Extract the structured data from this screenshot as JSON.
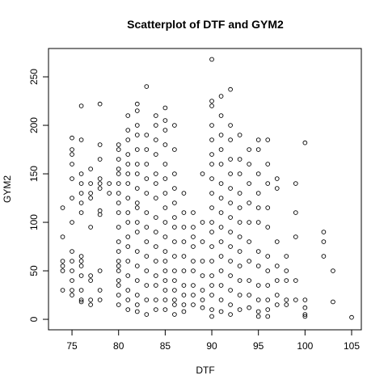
{
  "chart_data": {
    "type": "scatter",
    "title": "Scatterplot of DTF and GYM2",
    "xlabel": "DTF",
    "ylabel": "GYM2",
    "xlim": [
      72.48,
      106.04
    ],
    "ylim": [
      -10.8,
      279.2
    ],
    "xticks": [
      75,
      80,
      85,
      90,
      95,
      100,
      105
    ],
    "yticks": [
      0,
      50,
      100,
      150,
      200,
      250
    ],
    "color": "#000000",
    "x": [
      74,
      74,
      74,
      74,
      74,
      74,
      75,
      75,
      75,
      75,
      75,
      75,
      75,
      75,
      75,
      75,
      75,
      75,
      75,
      76,
      76,
      76,
      76,
      76,
      76,
      76,
      76,
      76,
      76,
      76,
      76,
      76,
      76,
      77,
      77,
      77,
      77,
      77,
      77,
      77,
      77,
      77,
      78,
      78,
      78,
      78,
      78,
      78,
      78,
      78,
      78,
      78,
      78,
      79,
      79,
      80,
      80,
      80,
      80,
      80,
      80,
      80,
      80,
      80,
      80,
      80,
      80,
      80,
      80,
      80,
      80,
      80,
      80,
      80,
      81,
      81,
      81,
      81,
      81,
      81,
      81,
      81,
      81,
      81,
      81,
      81,
      81,
      81,
      81,
      81,
      81,
      82,
      82,
      82,
      82,
      82,
      82,
      82,
      82,
      82,
      82,
      82,
      82,
      82,
      82,
      82,
      82,
      82,
      82,
      83,
      83,
      83,
      83,
      83,
      83,
      83,
      83,
      83,
      83,
      83,
      83,
      83,
      83,
      84,
      84,
      84,
      84,
      84,
      84,
      84,
      84,
      84,
      84,
      84,
      84,
      84,
      84,
      84,
      85,
      85,
      85,
      85,
      85,
      85,
      85,
      85,
      85,
      85,
      85,
      85,
      85,
      85,
      85,
      85,
      85,
      86,
      86,
      86,
      86,
      86,
      86,
      86,
      86,
      86,
      86,
      86,
      86,
      86,
      86,
      86,
      87,
      87,
      87,
      87,
      87,
      87,
      87,
      87,
      87,
      87,
      88,
      88,
      88,
      88,
      88,
      88,
      88,
      88,
      88,
      89,
      89,
      89,
      89,
      89,
      89,
      89,
      89,
      90,
      90,
      90,
      90,
      90,
      90,
      90,
      90,
      90,
      90,
      90,
      90,
      90,
      90,
      90,
      90,
      90,
      90,
      90,
      91,
      91,
      91,
      91,
      91,
      91,
      91,
      91,
      91,
      91,
      91,
      91,
      91,
      91,
      91,
      92,
      92,
      92,
      92,
      92,
      92,
      92,
      92,
      92,
      92,
      92,
      92,
      92,
      92,
      92,
      93,
      93,
      93,
      93,
      93,
      93,
      93,
      93,
      93,
      93,
      93,
      93,
      94,
      94,
      94,
      94,
      94,
      94,
      94,
      94,
      94,
      94,
      95,
      95,
      95,
      95,
      95,
      95,
      95,
      95,
      95,
      95,
      95,
      95,
      96,
      96,
      96,
      96,
      96,
      96,
      96,
      96,
      96,
      96,
      96,
      97,
      97,
      97,
      97,
      97,
      97,
      97,
      98,
      98,
      98,
      98,
      98,
      99,
      99,
      99,
      99,
      99,
      100,
      100,
      100,
      100,
      100,
      102,
      102,
      102,
      103,
      103,
      105
    ],
    "values": [
      115,
      85,
      60,
      55,
      50,
      30,
      187,
      175,
      170,
      160,
      145,
      125,
      100,
      70,
      60,
      50,
      40,
      30,
      25,
      220,
      185,
      150,
      140,
      130,
      120,
      110,
      65,
      60,
      55,
      45,
      30,
      20,
      18,
      155,
      140,
      130,
      125,
      95,
      45,
      40,
      20,
      15,
      222,
      180,
      165,
      145,
      140,
      135,
      112,
      108,
      50,
      30,
      20,
      140,
      130,
      180,
      175,
      165,
      155,
      150,
      140,
      130,
      120,
      110,
      95,
      80,
      70,
      60,
      55,
      50,
      40,
      35,
      25,
      15,
      210,
      195,
      185,
      170,
      160,
      150,
      140,
      125,
      110,
      100,
      85,
      75,
      60,
      45,
      30,
      20,
      10,
      222,
      215,
      200,
      190,
      175,
      160,
      150,
      135,
      120,
      115,
      100,
      90,
      70,
      55,
      40,
      25,
      15,
      8,
      240,
      190,
      175,
      160,
      145,
      130,
      110,
      95,
      80,
      65,
      50,
      35,
      20,
      5,
      210,
      200,
      185,
      170,
      150,
      140,
      125,
      105,
      90,
      75,
      60,
      45,
      35,
      20,
      10,
      218,
      205,
      195,
      180,
      160,
      145,
      130,
      115,
      100,
      85,
      70,
      60,
      50,
      40,
      30,
      20,
      10,
      200,
      175,
      150,
      135,
      120,
      105,
      95,
      80,
      65,
      50,
      40,
      30,
      20,
      15,
      5,
      130,
      110,
      95,
      80,
      65,
      50,
      35,
      25,
      15,
      8,
      110,
      95,
      85,
      75,
      60,
      50,
      35,
      25,
      15,
      150,
      100,
      80,
      60,
      45,
      30,
      20,
      12,
      268,
      225,
      220,
      200,
      185,
      170,
      160,
      145,
      130,
      115,
      100,
      90,
      75,
      60,
      45,
      35,
      25,
      10,
      3,
      230,
      210,
      190,
      175,
      160,
      140,
      125,
      110,
      95,
      80,
      65,
      50,
      35,
      20,
      8,
      237,
      200,
      185,
      165,
      150,
      135,
      120,
      105,
      90,
      75,
      60,
      45,
      30,
      15,
      5,
      190,
      165,
      150,
      130,
      115,
      100,
      85,
      70,
      55,
      40,
      25,
      10,
      175,
      160,
      140,
      120,
      100,
      80,
      60,
      40,
      25,
      12,
      185,
      175,
      150,
      130,
      115,
      100,
      70,
      55,
      35,
      20,
      8,
      3,
      185,
      160,
      140,
      115,
      95,
      65,
      50,
      35,
      20,
      10,
      3,
      145,
      135,
      80,
      55,
      40,
      25,
      15,
      65,
      50,
      40,
      20,
      15,
      140,
      110,
      85,
      40,
      20,
      182,
      20,
      12,
      5,
      3,
      90,
      80,
      65,
      50,
      18,
      2
    ]
  }
}
